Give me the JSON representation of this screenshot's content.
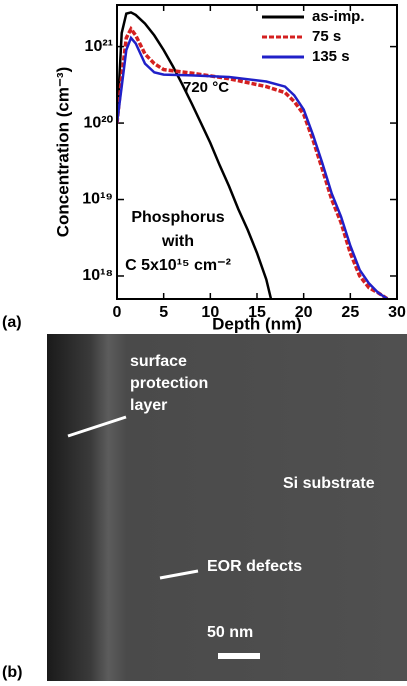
{
  "chart_data": {
    "type": "line",
    "title": "720 °C",
    "xlabel": "Depth (nm)",
    "ylabel": "Concentration (cm⁻³)",
    "annotations": [
      "Phosphorus",
      "with",
      "C 5x10¹⁵ cm⁻²"
    ],
    "xlim": [
      0,
      30
    ],
    "xticks": [
      0,
      5,
      10,
      15,
      20,
      25,
      30
    ],
    "ylim": [
      5e+17,
      3.5e+21
    ],
    "yscale": "log",
    "yticks": [
      {
        "value": 1e+18,
        "label": "10¹⁸"
      },
      {
        "value": 1e+19,
        "label": "10¹⁹"
      },
      {
        "value": 1e+20,
        "label": "10²⁰"
      },
      {
        "value": 1e+21,
        "label": "10²¹"
      }
    ],
    "legend": "upper right",
    "series": [
      {
        "name": "as-imp.",
        "color": "#000000",
        "dash": "solid",
        "x": [
          0,
          0.5,
          1,
          1.5,
          2,
          3,
          4,
          5,
          6,
          7,
          8,
          9,
          10,
          11,
          12,
          13,
          14,
          15,
          16,
          16.5
        ],
        "values": [
          1e+20,
          1.5e+21,
          2.7e+21,
          2.8e+21,
          2.6e+21,
          2e+21,
          1.4e+21,
          9e+20,
          5.5e+20,
          3.2e+20,
          1.8e+20,
          1e+20,
          5.5e+19,
          2.8e+19,
          1.5e+19,
          7.5e+18,
          4e+18,
          2e+18,
          9e+17,
          5e+17
        ]
      },
      {
        "name": "75 s",
        "color": "#d42020",
        "dash": "dashed",
        "x": [
          0,
          0.5,
          1,
          1.5,
          2,
          3,
          4,
          5,
          8,
          12,
          16,
          18,
          19,
          20,
          21,
          22,
          23,
          24,
          25,
          26,
          27,
          28,
          29
        ],
        "values": [
          1e+20,
          4e+20,
          1.3e+21,
          1.7e+21,
          1.4e+21,
          8e+20,
          6e+20,
          5e+20,
          4.5e+20,
          3.8e+20,
          3e+20,
          2.5e+20,
          1.9e+20,
          1.3e+20,
          6e+19,
          2.5e+19,
          1e+19,
          5e+18,
          2e+18,
          1e+18,
          7e+17,
          6e+17,
          5e+17
        ]
      },
      {
        "name": "135 s",
        "color": "#2020c8",
        "dash": "solid",
        "x": [
          0,
          0.5,
          1,
          1.5,
          2,
          3,
          4,
          5,
          8,
          12,
          16,
          18,
          19,
          20,
          21,
          22,
          23,
          24,
          25,
          26,
          27,
          28,
          29
        ],
        "values": [
          1e+20,
          3e+20,
          9e+20,
          1.3e+21,
          1.1e+21,
          6e+20,
          4.6e+20,
          4.3e+20,
          4.2e+20,
          4e+20,
          3.5e+20,
          3e+20,
          2.3e+20,
          1.5e+20,
          7e+19,
          3e+19,
          1.2e+19,
          6e+18,
          2.5e+18,
          1.2e+18,
          8e+17,
          6e+17,
          5e+17
        ]
      }
    ]
  },
  "panels": [
    "(a)",
    "(b)"
  ],
  "image": {
    "annotations": [
      "surface",
      "protection",
      "layer",
      "Si substrate",
      "EOR defects",
      "50 nm"
    ]
  }
}
